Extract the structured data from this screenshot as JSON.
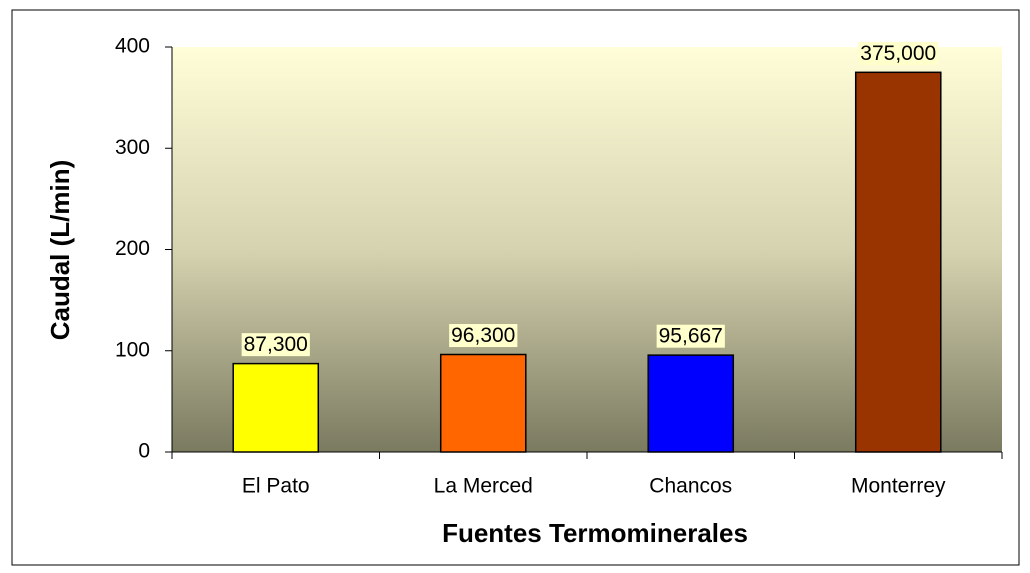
{
  "chart_data": {
    "type": "bar",
    "x_label": "Fuentes Termominerales",
    "y_label": "Caudal (L/min)",
    "categories": [
      "El Pato",
      "La Merced",
      "Chancos",
      "Monterrey"
    ],
    "values": [
      87.3,
      96.3,
      95.667,
      375
    ],
    "value_labels": [
      "87,300",
      "96,300",
      "95,667",
      "375,000"
    ],
    "colors": [
      "#ffff00",
      "#ff6600",
      "#0000ff",
      "#993300"
    ],
    "ylim": [
      0,
      400
    ],
    "yticks": [
      0,
      100,
      200,
      300,
      400
    ],
    "grid": false
  }
}
